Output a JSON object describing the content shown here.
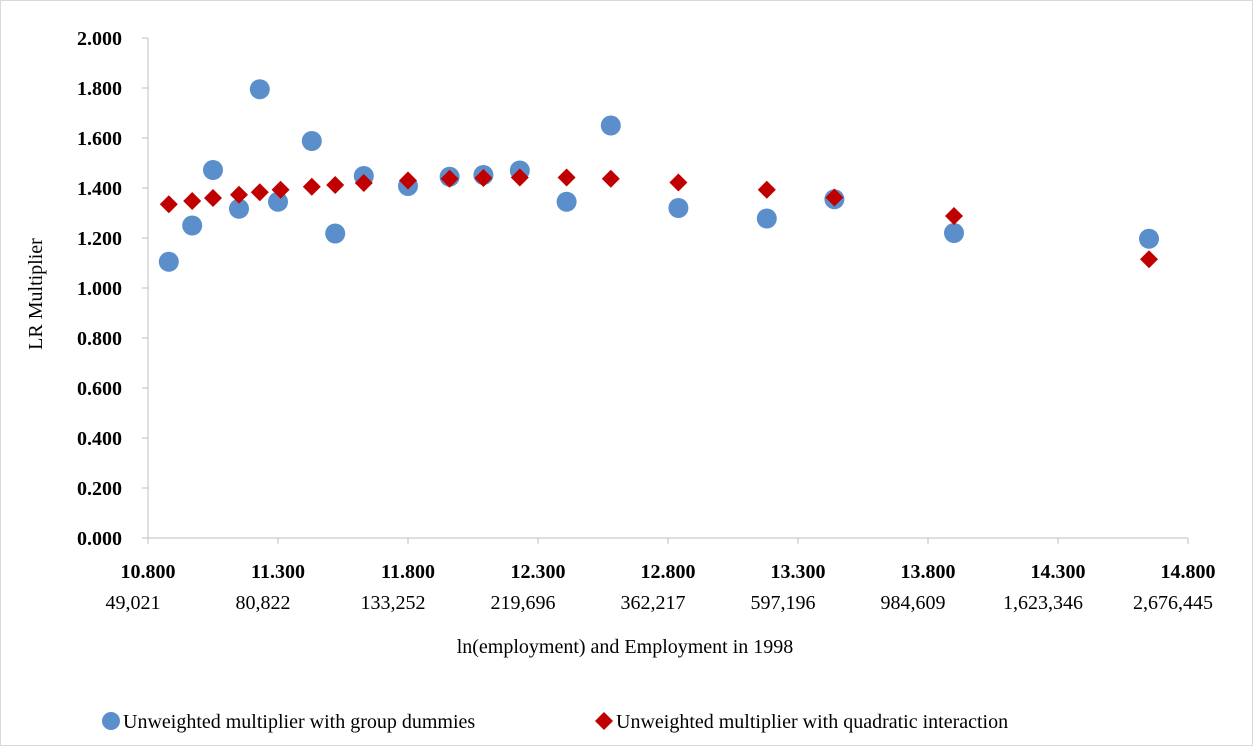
{
  "chart_data": {
    "type": "scatter",
    "title": "",
    "xlabel": "ln(employment) and Employment in 1998",
    "ylabel": "LR Multiplier",
    "xlim": [
      10.8,
      14.8
    ],
    "ylim": [
      0.0,
      2.0
    ],
    "x_ticks": [
      "10.800",
      "11.300",
      "11.800",
      "12.300",
      "12.800",
      "13.300",
      "13.800",
      "14.300",
      "14.800"
    ],
    "y_ticks": [
      "0.000",
      "0.200",
      "0.400",
      "0.600",
      "0.800",
      "1.000",
      "1.200",
      "1.400",
      "1.600",
      "1.800",
      "2.000"
    ],
    "secondary_x_labels": [
      "49,021",
      "80,822",
      "133,252",
      "219,696",
      "362,217",
      "597,196",
      "984,609",
      "1,623,346",
      "2,676,445"
    ],
    "grid": false,
    "legend_position": "bottom",
    "series": [
      {
        "name": "Unweighted multiplier with group dummies",
        "marker": "circle",
        "color": "#5b8fcc",
        "points": [
          [
            10.88,
            1.105
          ],
          [
            10.97,
            1.25
          ],
          [
            11.05,
            1.472
          ],
          [
            11.15,
            1.317
          ],
          [
            11.23,
            1.795
          ],
          [
            11.3,
            1.345
          ],
          [
            11.43,
            1.588
          ],
          [
            11.52,
            1.218
          ],
          [
            11.63,
            1.448
          ],
          [
            11.8,
            1.408
          ],
          [
            11.96,
            1.445
          ],
          [
            12.09,
            1.452
          ],
          [
            12.23,
            1.47
          ],
          [
            12.41,
            1.345
          ],
          [
            12.58,
            1.65
          ],
          [
            12.84,
            1.32
          ],
          [
            13.18,
            1.278
          ],
          [
            13.44,
            1.355
          ],
          [
            13.9,
            1.22
          ],
          [
            14.65,
            1.197
          ]
        ]
      },
      {
        "name": "Unweighted multiplier with quadratic interaction",
        "marker": "diamond",
        "color": "#c00000",
        "points": [
          [
            10.88,
            1.335
          ],
          [
            10.97,
            1.348
          ],
          [
            11.05,
            1.36
          ],
          [
            11.15,
            1.373
          ],
          [
            11.23,
            1.383
          ],
          [
            11.31,
            1.393
          ],
          [
            11.43,
            1.405
          ],
          [
            11.52,
            1.412
          ],
          [
            11.63,
            1.42
          ],
          [
            11.8,
            1.43
          ],
          [
            11.96,
            1.437
          ],
          [
            12.09,
            1.44
          ],
          [
            12.23,
            1.442
          ],
          [
            12.41,
            1.442
          ],
          [
            12.58,
            1.437
          ],
          [
            12.84,
            1.422
          ],
          [
            13.18,
            1.393
          ],
          [
            13.44,
            1.362
          ],
          [
            13.9,
            1.288
          ],
          [
            14.65,
            1.115
          ]
        ]
      }
    ]
  }
}
